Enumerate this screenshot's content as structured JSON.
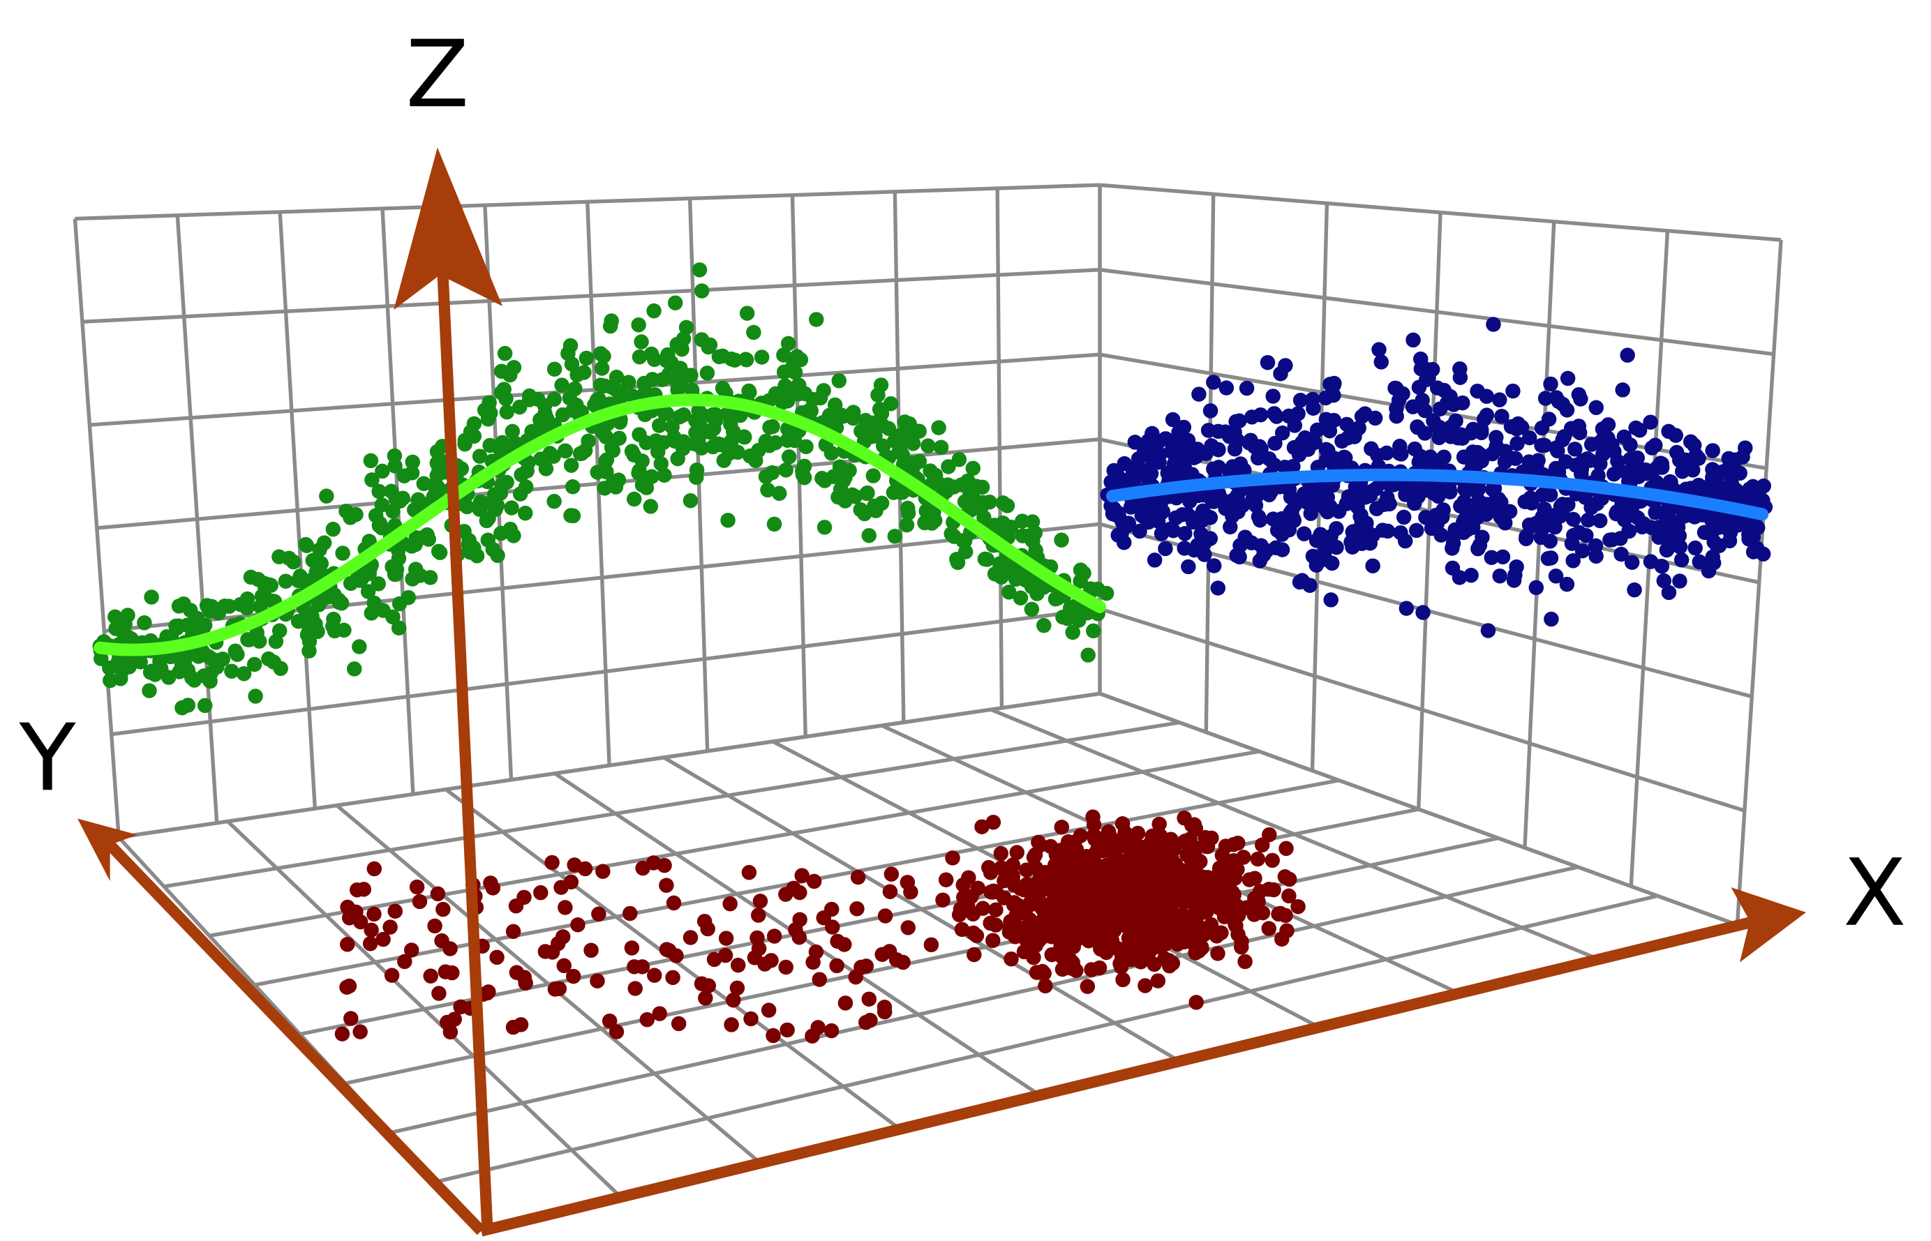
{
  "axes": {
    "z": "Z",
    "y": "Y",
    "x": "X"
  }
}
